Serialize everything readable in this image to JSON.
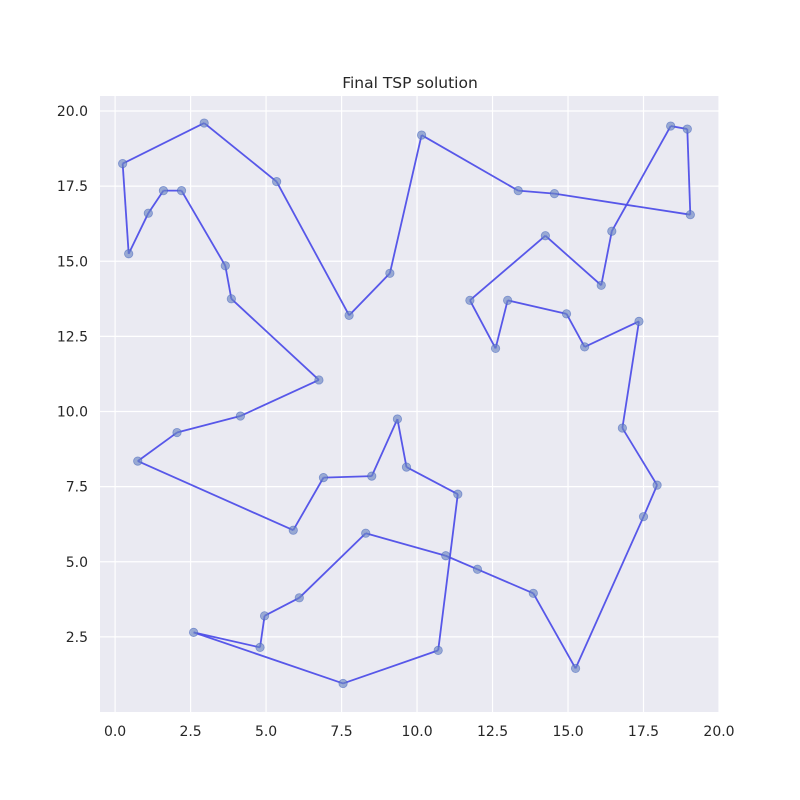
{
  "chart_data": {
    "type": "line",
    "title": "Final TSP solution",
    "xlabel": "",
    "ylabel": "",
    "xlim": [
      -0.5,
      20.0
    ],
    "ylim": [
      0.0,
      20.5
    ],
    "xticks": [
      0.0,
      2.5,
      5.0,
      7.5,
      10.0,
      12.5,
      15.0,
      17.5,
      20.0
    ],
    "xtick_labels": [
      "0.0",
      "2.5",
      "5.0",
      "7.5",
      "10.0",
      "12.5",
      "15.0",
      "17.5",
      "20.0"
    ],
    "yticks": [
      2.5,
      5.0,
      7.5,
      10.0,
      12.5,
      15.0,
      17.5,
      20.0
    ],
    "ytick_labels": [
      "2.5",
      "5.0",
      "7.5",
      "10.0",
      "12.5",
      "15.0",
      "17.5",
      "20.0"
    ],
    "grid": true,
    "line_color": "#4f4fe8",
    "point_color": "#6b86c2",
    "background_color": "#eaeaf2",
    "grid_color": "#ffffff",
    "route": [
      [
        0.45,
        15.25
      ],
      [
        0.25,
        18.25
      ],
      [
        2.95,
        19.6
      ],
      [
        5.35,
        17.65
      ],
      [
        7.75,
        13.2
      ],
      [
        9.1,
        14.6
      ],
      [
        10.15,
        19.2
      ],
      [
        13.35,
        17.35
      ],
      [
        14.55,
        17.25
      ],
      [
        19.05,
        16.55
      ],
      [
        18.95,
        19.4
      ],
      [
        18.4,
        19.5
      ],
      [
        16.45,
        16.0
      ],
      [
        16.1,
        14.2
      ],
      [
        14.25,
        15.85
      ],
      [
        11.75,
        13.7
      ],
      [
        12.6,
        12.1
      ],
      [
        13.0,
        13.7
      ],
      [
        14.95,
        13.25
      ],
      [
        15.55,
        12.15
      ],
      [
        17.35,
        13.0
      ],
      [
        16.8,
        9.45
      ],
      [
        17.95,
        7.55
      ],
      [
        17.5,
        6.5
      ],
      [
        15.25,
        1.45
      ],
      [
        13.85,
        3.95
      ],
      [
        12.0,
        4.75
      ],
      [
        10.95,
        5.2
      ],
      [
        8.3,
        5.95
      ],
      [
        6.1,
        3.8
      ],
      [
        4.95,
        3.2
      ],
      [
        4.8,
        2.15
      ],
      [
        2.6,
        2.65
      ],
      [
        7.55,
        0.95
      ],
      [
        10.7,
        2.05
      ],
      [
        11.35,
        7.25
      ],
      [
        9.65,
        8.15
      ],
      [
        9.35,
        9.75
      ],
      [
        8.5,
        7.85
      ],
      [
        6.9,
        7.8
      ],
      [
        5.9,
        6.05
      ],
      [
        0.75,
        8.35
      ],
      [
        2.05,
        9.3
      ],
      [
        4.15,
        9.85
      ],
      [
        6.75,
        11.05
      ],
      [
        3.85,
        13.75
      ],
      [
        3.65,
        14.85
      ],
      [
        2.2,
        17.35
      ],
      [
        1.6,
        17.35
      ],
      [
        1.1,
        16.6
      ],
      [
        0.45,
        15.25
      ]
    ]
  }
}
